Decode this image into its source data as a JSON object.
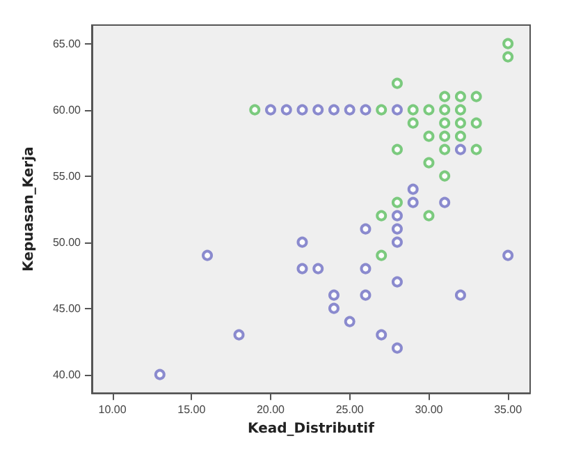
{
  "chart_data": {
    "type": "scatter",
    "xlabel": "Kead_Distributif",
    "ylabel": "Kepuasan_Kerja",
    "marker": "circle",
    "grid": false,
    "xlim": [
      8.7,
      36.4
    ],
    "ylim": [
      38.6,
      66.4
    ],
    "xticks": [
      {
        "value": 10,
        "label": "10.00"
      },
      {
        "value": 15,
        "label": "15.00"
      },
      {
        "value": 20,
        "label": "20.00"
      },
      {
        "value": 25,
        "label": "25.00"
      },
      {
        "value": 30,
        "label": "30.00"
      },
      {
        "value": 35,
        "label": "35.00"
      }
    ],
    "yticks": [
      {
        "value": 40,
        "label": "40.00"
      },
      {
        "value": 45,
        "label": "45.00"
      },
      {
        "value": 50,
        "label": "50.00"
      },
      {
        "value": 55,
        "label": "55.00"
      },
      {
        "value": 60,
        "label": "60.00"
      },
      {
        "value": 65,
        "label": "65.00"
      }
    ],
    "series": [
      {
        "color": "#6f6fc4",
        "x": [
          13,
          16,
          18,
          20,
          21,
          22,
          22,
          22,
          23,
          23,
          24,
          24,
          24,
          25,
          25,
          26,
          26,
          26,
          26,
          27,
          28,
          28,
          28,
          28,
          28,
          28,
          29,
          29,
          31,
          32,
          32,
          35
        ],
        "values": [
          40,
          49,
          43,
          60,
          60,
          60,
          50,
          48,
          60,
          48,
          60,
          46,
          45,
          60,
          44,
          60,
          51,
          48,
          46,
          43,
          60,
          52,
          51,
          50,
          47,
          42,
          54,
          53,
          53,
          57,
          46,
          49
        ]
      },
      {
        "color": "#5cbf60",
        "x": [
          19,
          27,
          27,
          27,
          28,
          28,
          28,
          29,
          29,
          30,
          30,
          30,
          30,
          31,
          31,
          31,
          31,
          31,
          31,
          32,
          32,
          32,
          32,
          33,
          33,
          33,
          35,
          35
        ],
        "values": [
          60,
          60,
          52,
          49,
          62,
          57,
          53,
          60,
          59,
          60,
          58,
          56,
          52,
          61,
          60,
          59,
          58,
          57,
          55,
          61,
          60,
          59,
          58,
          61,
          59,
          57,
          65,
          64
        ]
      }
    ]
  }
}
